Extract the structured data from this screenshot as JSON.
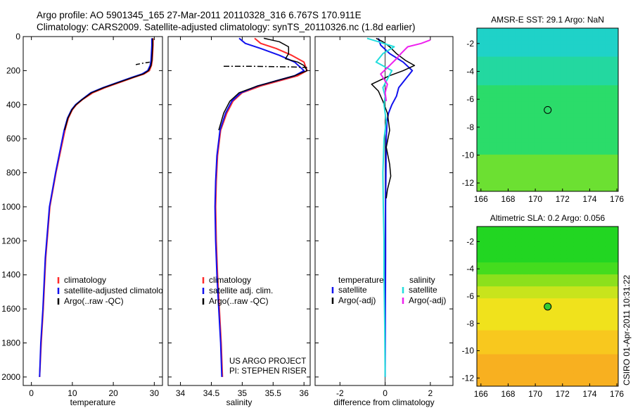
{
  "header": {
    "line1": "Argo profile: AO 5901345_165 27-Mar-2011 20110328_316 6.767S 170.911E",
    "line2": "Climatology: CARS2009. Satellite-adjusted climatology: synTS_20110326.nc (1.8d earlier)"
  },
  "credit": {
    "line1": "US ARGO PROJECT",
    "line2": "PI: STEPHEN RISER"
  },
  "stamp": "CSIRO 01-Apr-2011 10:31:22",
  "colors": {
    "red": "#ff2a2a",
    "blue": "#1111ee",
    "black": "#000000",
    "cyan": "#22dddd",
    "magenta": "#ee22ee"
  },
  "chart_data": [
    {
      "type": "line",
      "xlabel": "temperature",
      "ylabel": "",
      "xlim": [
        -2,
        32
      ],
      "ylim": [
        2050,
        0
      ],
      "xticks": [
        0,
        10,
        20,
        30
      ],
      "yticks": [
        0,
        200,
        400,
        600,
        800,
        1000,
        1200,
        1400,
        1600,
        1800,
        2000
      ],
      "legend": {
        "placement": "lower-right",
        "entries": [
          {
            "label": "climatology",
            "color": "#ff2a2a"
          },
          {
            "label": "satellite-adjusted climatolo",
            "color": "#1111ee"
          },
          {
            "label": "Argo(..raw -QC)",
            "color": "#000000"
          }
        ]
      },
      "series": [
        {
          "name": "climatology",
          "color": "#ff2a2a",
          "width": 2,
          "x": [
            29.7,
            29.7,
            29.6,
            29.5,
            29.3,
            28.8,
            27.5,
            25.0,
            21.5,
            18.0,
            15.0,
            12.5,
            11.0,
            10.0,
            9.0,
            8.2,
            6.0,
            4.5,
            3.5,
            2.9,
            2.4,
            2.0
          ],
          "y": [
            10,
            50,
            100,
            140,
            170,
            200,
            220,
            240,
            270,
            300,
            330,
            370,
            400,
            430,
            480,
            550,
            800,
            1000,
            1300,
            1600,
            1800,
            2000
          ]
        },
        {
          "name": "satellite-adjusted climatology",
          "color": "#1111ee",
          "width": 2,
          "x": [
            29.4,
            29.4,
            29.3,
            29.2,
            29.0,
            28.4,
            27.0,
            24.5,
            21.0,
            17.5,
            14.5,
            12.3,
            10.8,
            9.8,
            8.8,
            8.0,
            5.9,
            4.4,
            3.4,
            2.8,
            2.3,
            2.0
          ],
          "y": [
            10,
            50,
            100,
            140,
            170,
            200,
            220,
            240,
            270,
            300,
            330,
            370,
            400,
            430,
            480,
            550,
            800,
            1000,
            1300,
            1600,
            1800,
            2000
          ]
        },
        {
          "name": "Argo(..raw -QC)",
          "color": "#000000",
          "width": 1.5,
          "x": [
            29.6,
            29.6,
            29.5,
            29.4,
            29.2,
            28.6,
            27.3,
            24.8,
            21.2,
            17.7,
            14.7,
            12.4,
            10.9,
            9.9,
            8.9,
            8.1
          ],
          "y": [
            10,
            50,
            100,
            140,
            170,
            200,
            220,
            240,
            270,
            300,
            330,
            370,
            400,
            430,
            480,
            550
          ]
        },
        {
          "name": "",
          "color": "#000000",
          "width": 1.5,
          "dash": "6,3,2,3",
          "x": [
            25.5,
            27.5,
            29.0
          ],
          "y": [
            165,
            155,
            150
          ]
        }
      ]
    },
    {
      "type": "line",
      "xlabel": "salinity",
      "ylabel": "",
      "xlim": [
        33.8,
        36.1
      ],
      "ylim": [
        2050,
        0
      ],
      "xticks": [
        34,
        34.5,
        35,
        35.5,
        36
      ],
      "yticks": [
        0,
        200,
        400,
        600,
        800,
        1000,
        1200,
        1400,
        1600,
        1800,
        2000
      ],
      "legend": {
        "placement": "lower-right",
        "entries": [
          {
            "label": "climatology",
            "color": "#ff2a2a"
          },
          {
            "label": "satellite adj. clim.",
            "color": "#1111ee"
          },
          {
            "label": "Argo(..raw -QC)",
            "color": "#000000"
          }
        ]
      },
      "series": [
        {
          "name": "climatology",
          "color": "#ff2a2a",
          "width": 2,
          "x": [
            35.2,
            35.3,
            35.55,
            35.8,
            36.0,
            36.05,
            35.9,
            35.6,
            35.3,
            35.0,
            34.85,
            34.75,
            34.65,
            34.6,
            34.58,
            34.57,
            34.58,
            34.6,
            34.63,
            34.66,
            34.68
          ],
          "y": [
            10,
            40,
            70,
            110,
            150,
            200,
            230,
            260,
            290,
            330,
            380,
            450,
            550,
            700,
            850,
            1000,
            1200,
            1400,
            1600,
            1800,
            2000
          ]
        },
        {
          "name": "satellite adj. clim.",
          "color": "#1111ee",
          "width": 2,
          "x": [
            34.95,
            35.05,
            35.3,
            35.6,
            35.85,
            36.0,
            35.85,
            35.55,
            35.25,
            34.98,
            34.83,
            34.73,
            34.64,
            34.59,
            34.57,
            34.56,
            34.57,
            34.59,
            34.62,
            34.65,
            34.67
          ],
          "y": [
            10,
            40,
            70,
            110,
            150,
            200,
            230,
            260,
            290,
            330,
            380,
            450,
            550,
            700,
            850,
            1000,
            1200,
            1400,
            1600,
            1800,
            2000
          ]
        },
        {
          "name": "Argo(..raw -QC)",
          "color": "#000000",
          "width": 1.5,
          "x": [
            35.35,
            35.6,
            35.75,
            35.75,
            35.7,
            35.9,
            36.0,
            36.05,
            35.85,
            35.55,
            35.25,
            34.95,
            34.8,
            34.7,
            34.62
          ],
          "y": [
            10,
            30,
            60,
            100,
            130,
            150,
            170,
            200,
            230,
            260,
            290,
            330,
            380,
            450,
            550
          ]
        },
        {
          "name": "",
          "color": "#000000",
          "width": 1.5,
          "dash": "8,3,2,3",
          "x": [
            34.7,
            35.2,
            35.8,
            36.05
          ],
          "y": [
            175,
            175,
            178,
            182
          ]
        }
      ]
    },
    {
      "type": "line",
      "xlabel": "difference from climatology",
      "ylabel": "",
      "xlim": [
        -3.1,
        3.0
      ],
      "ylim": [
        2050,
        0
      ],
      "xticks": [
        -2,
        0,
        2
      ],
      "yticks": [
        0,
        200,
        400,
        600,
        800,
        1000,
        1200,
        1400,
        1600,
        1800,
        2000
      ],
      "legend": {
        "placement": "lower-right",
        "headers": [
          "temperature",
          "salinity"
        ],
        "entries": [
          {
            "label": "satellite",
            "color": "#1111ee"
          },
          {
            "label": "Argo(-adj)",
            "color": "#000000"
          },
          {
            "label": "satellite",
            "color": "#22dddd"
          },
          {
            "label": "Argo(-adj)",
            "color": "#ee22ee"
          }
        ]
      },
      "series": [
        {
          "name": "temperature satellite",
          "color": "#1111ee",
          "width": 2,
          "x": [
            -0.3,
            -0.2,
            0.2,
            0.8,
            1.2,
            0.9,
            0.6,
            0.5,
            0.3,
            0.15,
            0.08,
            0.05,
            0.04,
            0.03,
            0.02,
            0.02,
            0.01,
            0.0
          ],
          "y": [
            10,
            50,
            100,
            150,
            200,
            250,
            300,
            350,
            400,
            450,
            500,
            600,
            700,
            850,
            1000,
            1300,
            1600,
            2000
          ]
        },
        {
          "name": "temperature Argo(-adj)",
          "color": "#000000",
          "width": 1.5,
          "x": [
            -0.4,
            -0.1,
            0.2,
            0.5,
            0.9,
            1.3,
            0.8,
            0.2,
            -0.6,
            -0.3,
            -0.1,
            0.1,
            0.2,
            0.05,
            0.2,
            0.25,
            0.1,
            0.05
          ],
          "y": [
            10,
            30,
            60,
            100,
            140,
            170,
            200,
            230,
            280,
            320,
            380,
            450,
            550,
            650,
            750,
            820,
            900,
            950
          ]
        },
        {
          "name": "salinity satellite",
          "color": "#22dddd",
          "width": 2,
          "x": [
            -0.8,
            -0.3,
            0.4,
            -0.1,
            -0.4,
            0.3,
            0.1,
            -0.1,
            0.0,
            -0.05,
            0.05,
            -0.05,
            -0.1,
            -0.08,
            -0.05,
            -0.05,
            -0.02,
            0.0
          ],
          "y": [
            10,
            30,
            60,
            100,
            150,
            200,
            250,
            300,
            350,
            400,
            500,
            600,
            800,
            1000,
            1200,
            1400,
            1700,
            2000
          ]
        },
        {
          "name": "salinity Argo(-adj)",
          "color": "#ee22ee",
          "width": 2,
          "x": [
            2.0,
            1.6,
            1.0,
            0.7,
            0.5,
            0.2,
            -0.2,
            0.1,
            0.0,
            0.05
          ],
          "y": [
            20,
            40,
            60,
            100,
            130,
            170,
            220,
            280,
            330,
            380
          ]
        }
      ]
    },
    {
      "type": "heatmap",
      "title": "AMSR-E SST: 29.1 Argo: NaN",
      "xlim": [
        165.7,
        176.1
      ],
      "ylim": [
        -12.6,
        -0.9
      ],
      "xticks": [
        166,
        168,
        170,
        172,
        174,
        176
      ],
      "yticks": [
        -2,
        -4,
        -6,
        -8,
        -10,
        -12
      ],
      "marker": {
        "x": 170.911,
        "y": -6.767,
        "fill": "none"
      },
      "colors": [
        "#1fd2c8",
        "#23d8a0",
        "#2bdc6a",
        "#6ce032"
      ],
      "rows": [
        "0000000000000000000000",
        "0000000000000000000000",
        "0000000000000000000000",
        "0000000000000000000000",
        "0000000000000000000000",
        "0000000000000000000000",
        "0000000000000000000000",
        "1111111111111111111111",
        "1111111111111111111111",
        "1111111111111111111111",
        "1111111111111111111111",
        "1111111111111111111111",
        "1111111111111111111111",
        "1111111111111111111111",
        "2222222222222222222222",
        "2222222222222222222222",
        "2222222222222222222222",
        "2222222222222222222222",
        "2222222222222222222222",
        "2222222222222222222222",
        "2222222222222222222222",
        "2222222222222222222222",
        "2222222222222222222222",
        "2222222222222222222222",
        "2222222222222222222222",
        "2222222222222222222222",
        "2222222222222222222222",
        "2222222222222222222222",
        "2222222222222222222222",
        "2222222222222222222222",
        "2222222222222222222222",
        "3333333333333333333333",
        "3333333333333333333333",
        "3333333333333333333333",
        "3333333333333333333333",
        "3333333333333333333333",
        "3333333333333333333333",
        "3333333333333333333333",
        "3333333333333333333333",
        "3333333333333333333333"
      ]
    },
    {
      "type": "heatmap",
      "title": "Altimetric SLA: 0.2 Argo: 0.056",
      "xlim": [
        165.7,
        176.1
      ],
      "ylim": [
        -12.6,
        -0.9
      ],
      "xticks": [
        166,
        168,
        170,
        172,
        174,
        176
      ],
      "yticks": [
        -2,
        -4,
        -6,
        -8,
        -10,
        -12
      ],
      "marker": {
        "x": 170.911,
        "y": -6.767,
        "fill": "#33cc33"
      },
      "colors": [
        "#22d622",
        "#44dc1e",
        "#8ce01c",
        "#c8e41c",
        "#f0e21c",
        "#f8c81e",
        "#f8b020"
      ],
      "rows": [
        "0000000000000000000000",
        "0000000000000000000000",
        "0000000000000000000000",
        "0000000000000000000000",
        "0000000000000000000000",
        "0000000000000000000000",
        "0000000000000000000000",
        "0000000000000000000000",
        "0000000000000000000000",
        "1111111111111111111111",
        "1111111111111111111111",
        "1111111111111111111111",
        "2222222222222222222222",
        "2222222222222222222222",
        "2222222222222222222222",
        "3333333333333333333333",
        "3333333333333333333333",
        "3333333333333333333333",
        "4444444444444444444444",
        "4444444444444444444444",
        "4444444444444444444444",
        "4444444444444444444444",
        "4444444444444444444444",
        "4444444444444444444444",
        "4444444444444444444444",
        "4444444444444444444444",
        "5555555555555555555555",
        "5555555555555555555555",
        "5555555555555555555555",
        "5555555555555555555555",
        "5555555555555555555555",
        "5555555555555555555555",
        "6666666666666666666666",
        "6666666666666666666666",
        "6666666666666666666666",
        "6666666666666666666666",
        "6666666666666666666666",
        "6666666666666666666666",
        "6666666666666666666666",
        "6666666666666666666666"
      ]
    }
  ]
}
